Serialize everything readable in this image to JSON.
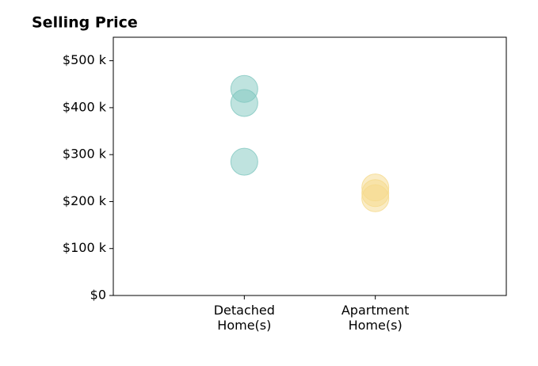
{
  "chart_data": {
    "type": "strip",
    "title": "Selling Price",
    "categories": [
      "Detached\nHome(s)",
      "Apartment\nHome(s)"
    ],
    "values": [
      [
        440000,
        410000,
        285000
      ],
      [
        230000,
        218000,
        207000
      ]
    ],
    "colors": [
      "#7fc7bf",
      "#f5d98b"
    ],
    "ylim": [
      0,
      550000
    ],
    "yticks": [
      {
        "value": 0,
        "label": "$0"
      },
      {
        "value": 100000,
        "label": "$100 k"
      },
      {
        "value": 200000,
        "label": "$200 k"
      },
      {
        "value": 300000,
        "label": "$300 k"
      },
      {
        "value": 400000,
        "label": "$400 k"
      },
      {
        "value": 500000,
        "label": "$500 k"
      }
    ]
  }
}
